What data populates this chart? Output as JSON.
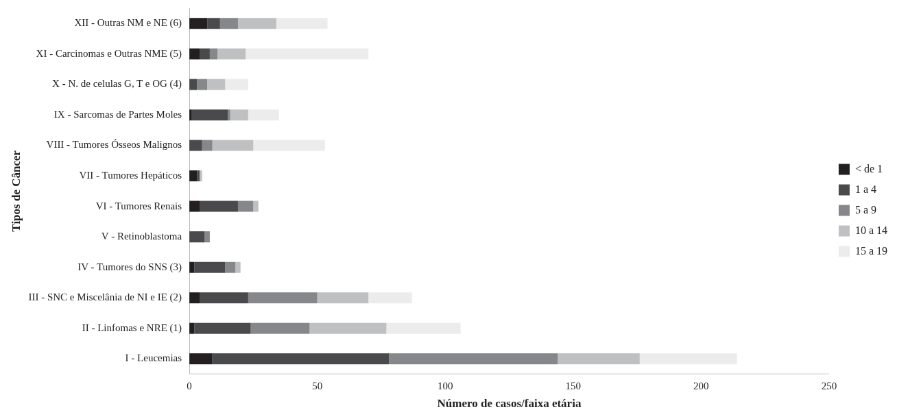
{
  "chart_data": {
    "type": "bar",
    "orientation": "horizontal",
    "stacked": true,
    "xlabel": "Número de casos/faixa etária",
    "ylabel": "Tipos de Câncer",
    "categories": [
      "XII - Outras NM e NE (6)",
      "XI - Carcinomas e Outras NME (5)",
      "X - N. de celulas G, T e OG (4)",
      "IX - Sarcomas de Partes Moles",
      "VIII - Tumores Ósseos Malignos",
      "VII - Tumores Hepáticos",
      "VI - Tumores Renais",
      "V - Retinoblastoma",
      "IV - Tumores do SNS (3)",
      "III - SNC e Miscelânia de NI e IE (2)",
      "II - Linfomas e NRE (1)",
      "I - Leucemias"
    ],
    "series": [
      {
        "name": "< de 1",
        "color": "#231f20",
        "values": [
          7,
          4,
          0,
          1,
          0,
          3,
          4,
          0,
          2,
          4,
          2,
          9
        ]
      },
      {
        "name": "1 a 4",
        "color": "#4a4a4c",
        "values": [
          5,
          4,
          3,
          14,
          5,
          1,
          15,
          6,
          12,
          19,
          22,
          69
        ]
      },
      {
        "name": "5 a 9",
        "color": "#86878a",
        "values": [
          7,
          3,
          4,
          1,
          4,
          0,
          6,
          2,
          4,
          27,
          23,
          66
        ]
      },
      {
        "name": "10 a 14",
        "color": "#bfc0c2",
        "values": [
          15,
          11,
          7,
          7,
          16,
          1,
          2,
          0,
          2,
          20,
          30,
          32
        ]
      },
      {
        "name": "15 a 19",
        "color": "#ececec",
        "values": [
          20,
          48,
          9,
          12,
          28,
          0,
          0,
          0,
          0,
          17,
          29,
          38
        ]
      }
    ],
    "xlim": [
      0,
      250
    ],
    "xticks": [
      0,
      50,
      100,
      150,
      200,
      250
    ],
    "grid": false,
    "legend": "right"
  }
}
